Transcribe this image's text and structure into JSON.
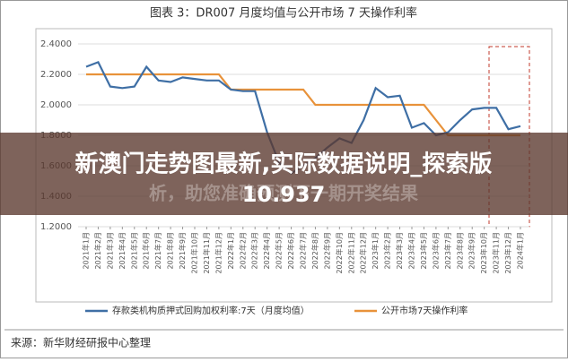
{
  "chart_data": {
    "type": "line",
    "title": "图表 3：DR007 月度均值与公开市场 7 天操作利率",
    "categories": [
      "2021年1月",
      "2021年2月",
      "2021年3月",
      "2021年4月",
      "2021年5月",
      "2021年6月",
      "2021年7月",
      "2021年8月",
      "2021年9月",
      "2021年10月",
      "2021年11月",
      "2021年12月",
      "2022年1月",
      "2022年2月",
      "2022年3月",
      "2022年4月",
      "2022年5月",
      "2022年6月",
      "2022年7月",
      "2022年8月",
      "2022年9月",
      "2022年10月",
      "2022年11月",
      "2022年12月",
      "2023年1月",
      "2023年2月",
      "2023年3月",
      "2023年4月",
      "2023年5月",
      "2023年6月",
      "2023年7月",
      "2023年8月",
      "2023年9月",
      "2023年10月",
      "2023年11月",
      "2023年12月",
      "2024年1月"
    ],
    "series": [
      {
        "name": "存款类机构质押式回购加权利率:7天（月度均值）",
        "color": "#3f6fa5",
        "values": [
          2.25,
          2.28,
          2.12,
          2.11,
          2.12,
          2.25,
          2.16,
          2.15,
          2.18,
          2.17,
          2.16,
          2.16,
          2.1,
          2.09,
          2.09,
          1.82,
          1.62,
          1.55,
          1.6,
          1.65,
          1.72,
          1.78,
          1.75,
          1.9,
          2.11,
          2.05,
          2.06,
          1.85,
          1.88,
          1.8,
          1.82,
          1.9,
          1.97,
          1.98,
          1.98,
          1.84,
          1.86
        ]
      },
      {
        "name": "公开市场7天操作利率",
        "color": "#e8923a",
        "values": [
          2.2,
          2.2,
          2.2,
          2.2,
          2.2,
          2.2,
          2.2,
          2.2,
          2.2,
          2.2,
          2.2,
          2.2,
          2.1,
          2.1,
          2.1,
          2.1,
          2.1,
          2.1,
          2.1,
          2.0,
          2.0,
          2.0,
          2.0,
          2.0,
          2.0,
          2.0,
          2.0,
          2.0,
          2.0,
          1.9,
          1.8,
          1.8,
          1.8,
          1.8,
          1.8,
          1.8,
          1.8
        ]
      }
    ],
    "ylim": [
      1.2,
      2.4
    ],
    "yticks": [
      {
        "value": 1.2,
        "label": "1.2000"
      },
      {
        "value": 1.4,
        "label": "1.4000"
      },
      {
        "value": 1.6,
        "label": "1.6000"
      },
      {
        "value": 1.8,
        "label": "1.8000"
      },
      {
        "value": 2.0,
        "label": "2.0000"
      },
      {
        "value": 2.2,
        "label": "2.2000"
      },
      {
        "value": 2.4,
        "label": "2.4000"
      }
    ],
    "grid": true,
    "source": "来源：新华财经研报中心整理"
  },
  "overlay": {
    "line1": "新澳门走势图最新,实际数据说明_探索版",
    "faded": "析，助您准确预测下一期开奖结果",
    "line2": "10.937"
  }
}
